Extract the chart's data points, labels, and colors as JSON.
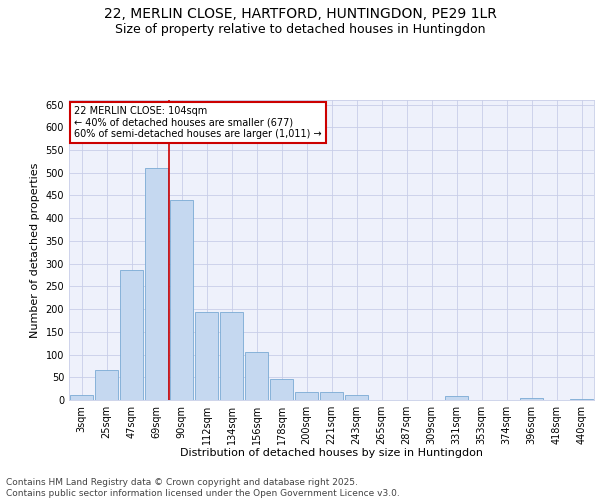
{
  "title1": "22, MERLIN CLOSE, HARTFORD, HUNTINGDON, PE29 1LR",
  "title2": "Size of property relative to detached houses in Huntingdon",
  "xlabel": "Distribution of detached houses by size in Huntingdon",
  "ylabel": "Number of detached properties",
  "categories": [
    "3sqm",
    "25sqm",
    "47sqm",
    "69sqm",
    "90sqm",
    "112sqm",
    "134sqm",
    "156sqm",
    "178sqm",
    "200sqm",
    "221sqm",
    "243sqm",
    "265sqm",
    "287sqm",
    "309sqm",
    "331sqm",
    "353sqm",
    "374sqm",
    "396sqm",
    "418sqm",
    "440sqm"
  ],
  "values": [
    10,
    65,
    285,
    510,
    440,
    193,
    193,
    105,
    46,
    18,
    18,
    10,
    0,
    0,
    0,
    8,
    0,
    0,
    5,
    0,
    3
  ],
  "bar_color": "#c5d8f0",
  "bar_edge_color": "#7aaad4",
  "vline_color": "#cc0000",
  "vline_x": 3.5,
  "annotation_text": "22 MERLIN CLOSE: 104sqm\n← 40% of detached houses are smaller (677)\n60% of semi-detached houses are larger (1,011) →",
  "annotation_box_color": "#ffffff",
  "annotation_box_edge": "#cc0000",
  "ylim": [
    0,
    660
  ],
  "yticks": [
    0,
    50,
    100,
    150,
    200,
    250,
    300,
    350,
    400,
    450,
    500,
    550,
    600,
    650
  ],
  "footer": "Contains HM Land Registry data © Crown copyright and database right 2025.\nContains public sector information licensed under the Open Government Licence v3.0.",
  "bg_color": "#eef1fb",
  "grid_color": "#c8cee8",
  "title_fontsize": 10,
  "subtitle_fontsize": 9,
  "axis_label_fontsize": 8,
  "tick_fontsize": 7,
  "footer_fontsize": 6.5
}
